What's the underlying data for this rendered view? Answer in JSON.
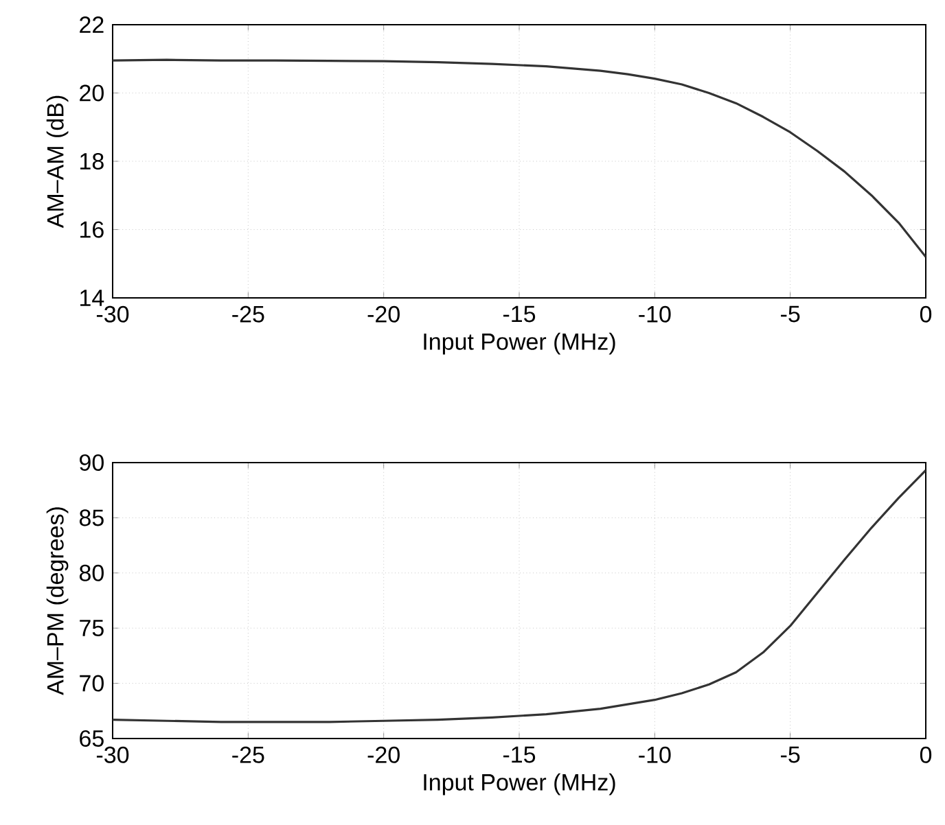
{
  "chart_data": [
    {
      "type": "line",
      "xlabel": "Input Power (MHz)",
      "ylabel": "AM–AM (dB)",
      "xlim": [
        -30,
        0
      ],
      "ylim": [
        14,
        22
      ],
      "xticks": [
        -30,
        -25,
        -20,
        -15,
        -10,
        -5,
        0
      ],
      "yticks": [
        14,
        16,
        18,
        20,
        22
      ],
      "grid": true,
      "x": [
        -30,
        -28,
        -26,
        -24,
        -22,
        -20,
        -18,
        -16,
        -14,
        -12,
        -11,
        -10,
        -9,
        -8,
        -7,
        -6,
        -5,
        -4,
        -3,
        -2,
        -1,
        0
      ],
      "series": [
        {
          "color": "#333333",
          "values": [
            20.95,
            20.97,
            20.95,
            20.95,
            20.94,
            20.93,
            20.9,
            20.85,
            20.78,
            20.65,
            20.55,
            20.42,
            20.25,
            20.0,
            19.7,
            19.3,
            18.85,
            18.3,
            17.7,
            17.0,
            16.2,
            15.2
          ]
        }
      ]
    },
    {
      "type": "line",
      "xlabel": "Input Power (MHz)",
      "ylabel": "AM–PM (degrees)",
      "xlim": [
        -30,
        0
      ],
      "ylim": [
        65,
        90
      ],
      "xticks": [
        -30,
        -25,
        -20,
        -15,
        -10,
        -5,
        0
      ],
      "yticks": [
        65,
        70,
        75,
        80,
        85,
        90
      ],
      "grid": true,
      "x": [
        -30,
        -28,
        -26,
        -24,
        -22,
        -20,
        -18,
        -16,
        -14,
        -12,
        -10,
        -9,
        -8,
        -7,
        -6,
        -5,
        -4,
        -3,
        -2,
        -1,
        0
      ],
      "series": [
        {
          "color": "#333333",
          "values": [
            66.7,
            66.6,
            66.5,
            66.5,
            66.5,
            66.6,
            66.7,
            66.9,
            67.2,
            67.7,
            68.5,
            69.1,
            69.9,
            71.0,
            72.8,
            75.2,
            78.2,
            81.2,
            84.1,
            86.8,
            89.3
          ]
        }
      ]
    }
  ]
}
